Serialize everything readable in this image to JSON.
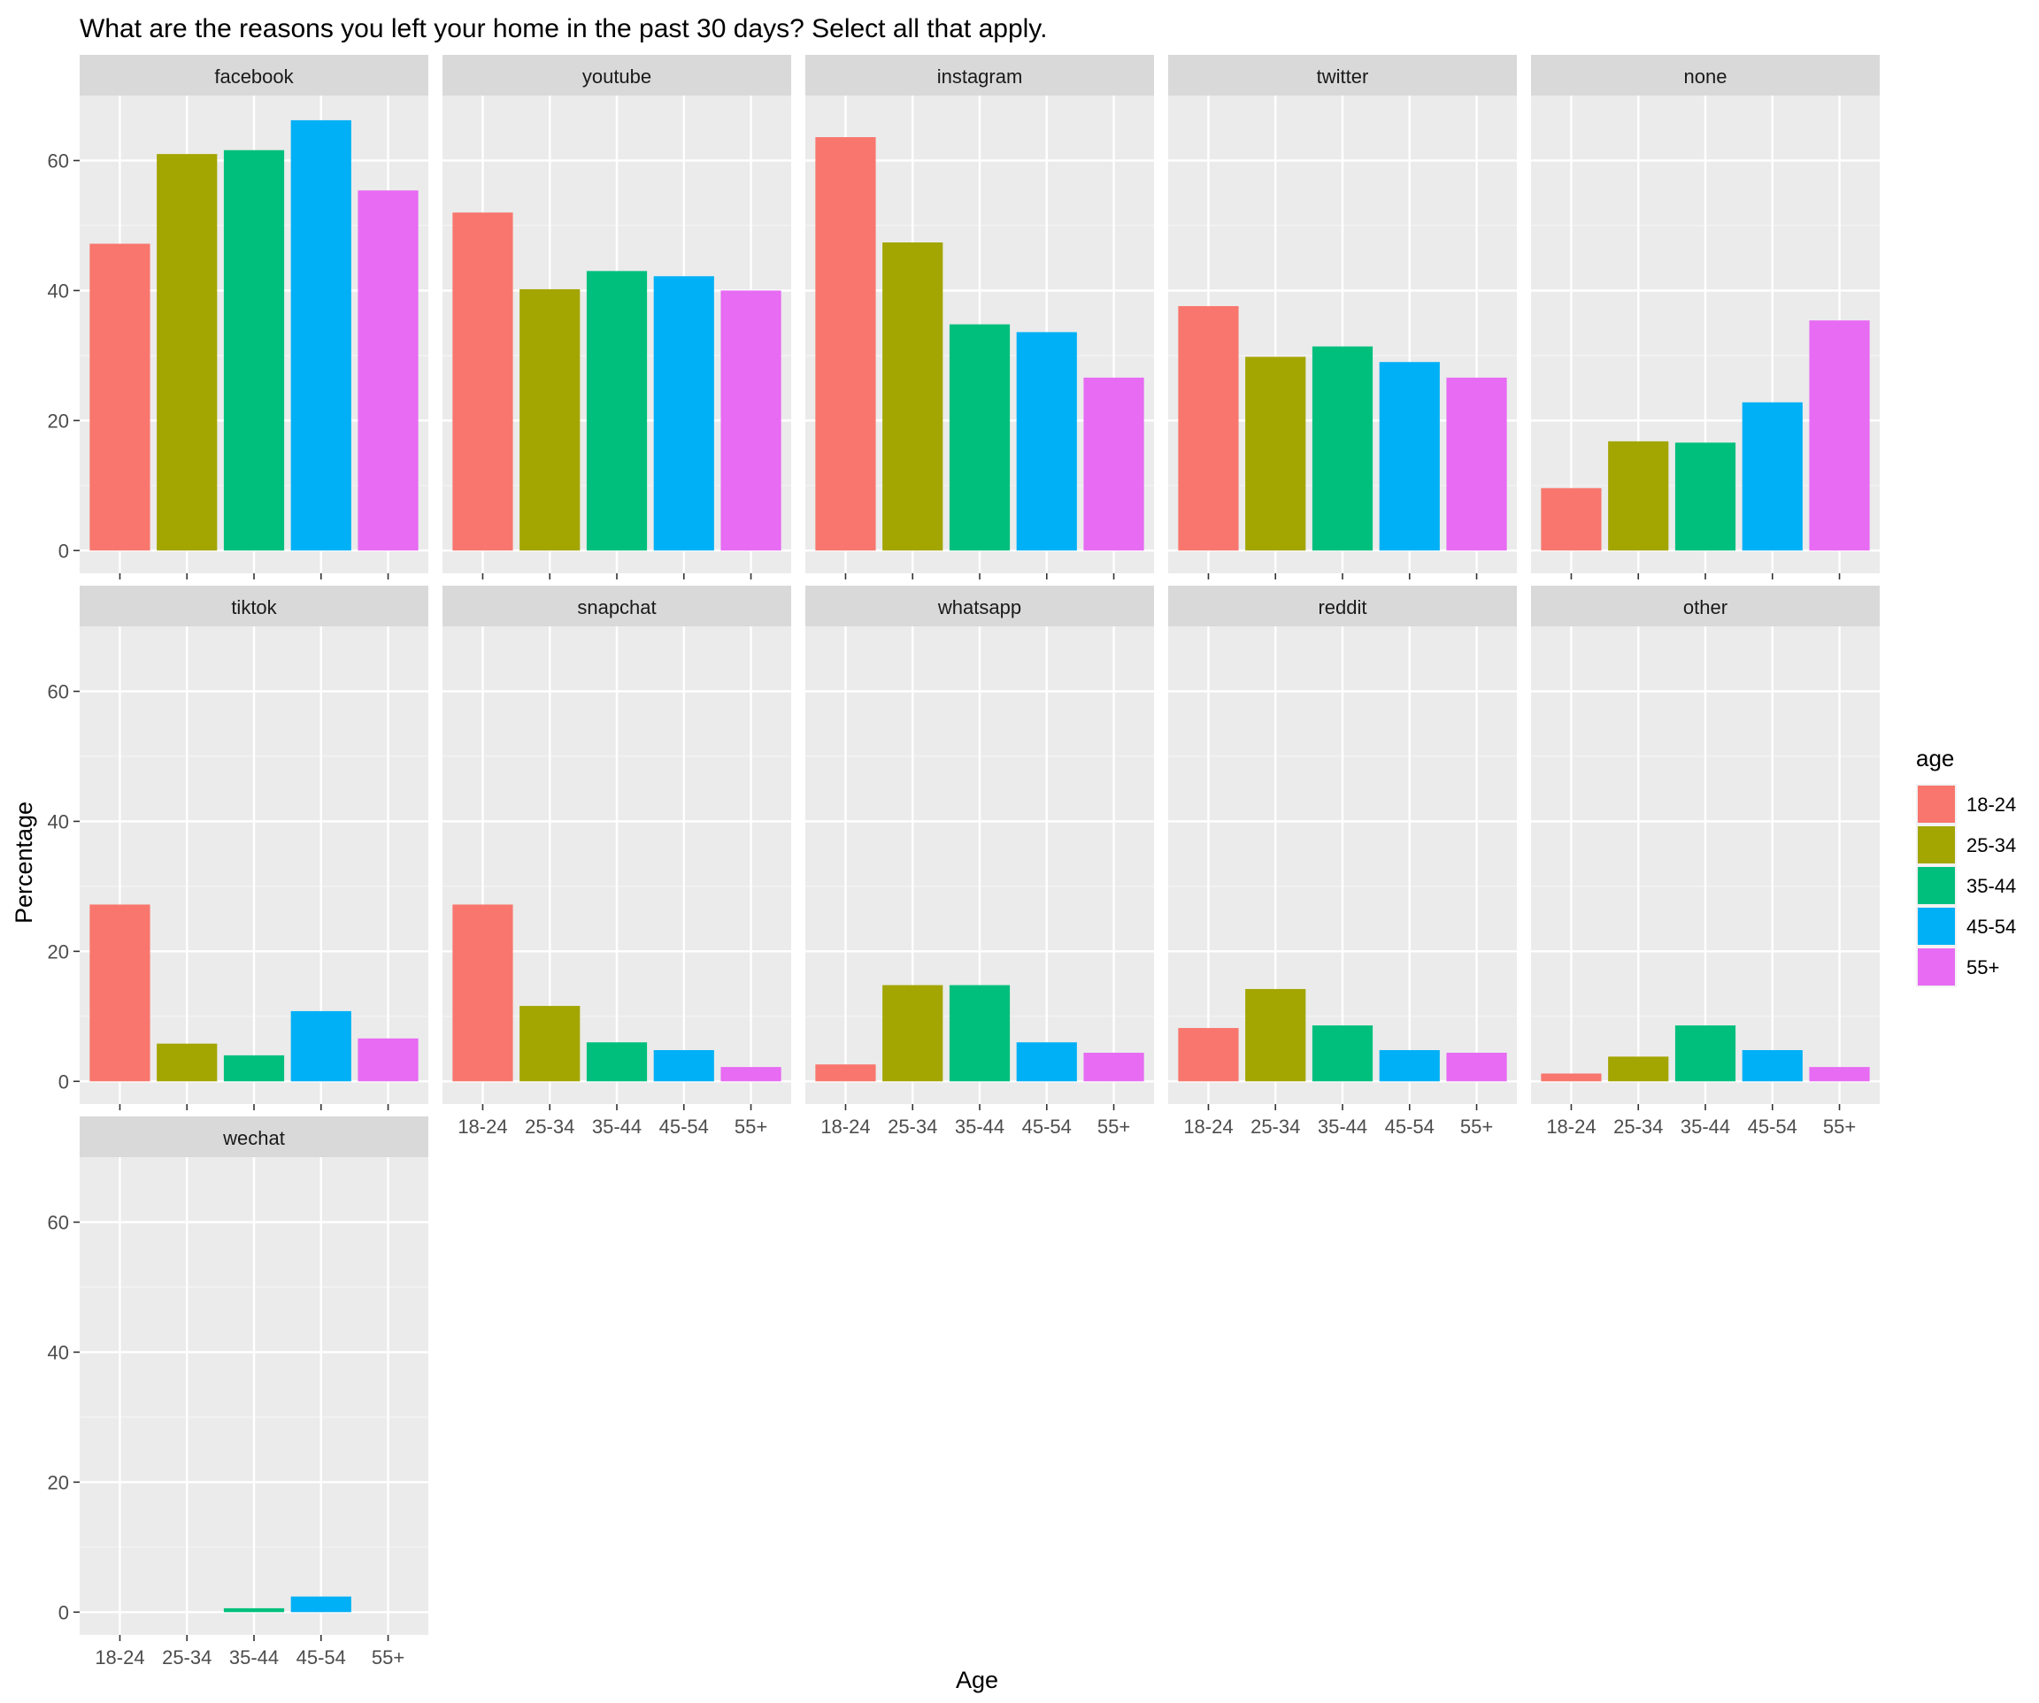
{
  "chart_data": {
    "type": "bar",
    "title": "What are the reasons you left your home in the past 30 days? Select all that apply.",
    "xlabel": "Age",
    "ylabel": "Percentage",
    "categories": [
      "18-24",
      "25-34",
      "35-44",
      "45-54",
      "55+"
    ],
    "ylim": [
      -3.5,
      70
    ],
    "yticks": [
      0,
      20,
      40,
      60
    ],
    "legend": {
      "title": "age",
      "position": "right",
      "entries": [
        "18-24",
        "25-34",
        "35-44",
        "45-54",
        "55+"
      ]
    },
    "colors": [
      "#F8766D",
      "#A3A500",
      "#00BF7D",
      "#00B0F6",
      "#E76BF3"
    ],
    "panel_bg": "#EBEBEB",
    "strip_bg": "#D9D9D9",
    "grid": true,
    "facets": [
      {
        "name": "facebook",
        "values": [
          47.2,
          61.0,
          61.6,
          66.2,
          55.4
        ]
      },
      {
        "name": "youtube",
        "values": [
          52.0,
          40.2,
          43.0,
          42.2,
          40.0
        ]
      },
      {
        "name": "instagram",
        "values": [
          63.6,
          47.4,
          34.8,
          33.6,
          26.6
        ]
      },
      {
        "name": "twitter",
        "values": [
          37.6,
          29.8,
          31.4,
          29.0,
          26.6
        ]
      },
      {
        "name": "none",
        "values": [
          9.6,
          16.8,
          16.6,
          22.8,
          35.4
        ]
      },
      {
        "name": "tiktok",
        "values": [
          27.2,
          5.8,
          4.0,
          10.8,
          6.6
        ]
      },
      {
        "name": "snapchat",
        "values": [
          27.2,
          11.6,
          6.0,
          4.8,
          2.2
        ]
      },
      {
        "name": "whatsapp",
        "values": [
          2.6,
          14.8,
          14.8,
          6.0,
          4.4
        ]
      },
      {
        "name": "reddit",
        "values": [
          8.2,
          14.2,
          8.6,
          4.8,
          4.4
        ]
      },
      {
        "name": "other",
        "values": [
          1.2,
          3.8,
          8.6,
          4.8,
          2.2
        ]
      },
      {
        "name": "wechat",
        "values": [
          0,
          0,
          0.6,
          2.4,
          0
        ]
      }
    ]
  }
}
